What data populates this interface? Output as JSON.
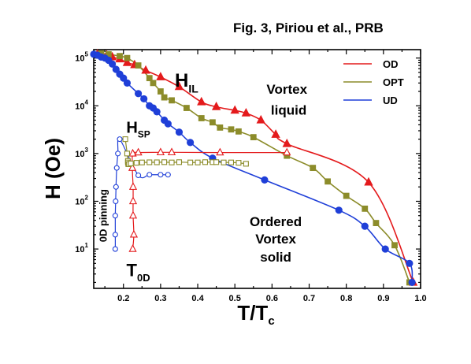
{
  "title": "Fig. 3, Piriou et al., PRB",
  "chart_data": {
    "type": "scatter",
    "title": "Fig. 3, Piriou et al., PRB",
    "xlabel_main": "T/T",
    "xlabel_sub": "c",
    "ylabel": "H (Oe)",
    "xlim": [
      0.12,
      1.0
    ],
    "ylim": [
      1.5,
      150000
    ],
    "yscale": "log",
    "x_ticks": [
      "0.2",
      "0.3",
      "0.4",
      "0.5",
      "0.6",
      "0.7",
      "0.8",
      "0.9",
      "1.0"
    ],
    "y_ticks": [
      {
        "base": "10",
        "exp": "1",
        "value": 10
      },
      {
        "base": "10",
        "exp": "2",
        "value": 100
      },
      {
        "base": "10",
        "exp": "3",
        "value": 1000
      },
      {
        "base": "10",
        "exp": "4",
        "value": 10000
      },
      {
        "base": "10",
        "exp": "5",
        "value": 100000
      }
    ],
    "legend_position": "top-right",
    "colors": {
      "OD": "#e41a1c",
      "OPT": "#8c8c2a",
      "UD": "#1f3fd8"
    },
    "series": [
      {
        "name": "OD",
        "marker": "triangle",
        "filled": true,
        "curve": "HIL",
        "x": [
          0.13,
          0.155,
          0.17,
          0.19,
          0.21,
          0.23,
          0.26,
          0.3,
          0.35,
          0.41,
          0.45,
          0.5,
          0.53,
          0.57,
          0.61,
          0.64,
          0.86,
          0.98
        ],
        "y": [
          120000,
          115000,
          105000,
          95000,
          80000,
          72000,
          55000,
          40000,
          25000,
          12000,
          9500,
          8000,
          7000,
          5000,
          2500,
          1600,
          250,
          2
        ]
      },
      {
        "name": "OPT",
        "marker": "square",
        "filled": true,
        "curve": "HIL",
        "x": [
          0.14,
          0.16,
          0.19,
          0.21,
          0.24,
          0.27,
          0.28,
          0.3,
          0.31,
          0.33,
          0.37,
          0.41,
          0.44,
          0.46,
          0.49,
          0.51,
          0.55,
          0.64,
          0.71,
          0.75,
          0.8,
          0.85,
          0.88,
          0.93,
          0.97
        ],
        "y": [
          125000,
          120000,
          110000,
          100000,
          70000,
          38000,
          30000,
          20000,
          15000,
          13000,
          9000,
          5500,
          4500,
          3500,
          3200,
          2900,
          2200,
          900,
          500,
          260,
          130,
          70,
          35,
          12,
          2
        ]
      },
      {
        "name": "UD",
        "marker": "circle",
        "filled": true,
        "curve": "HIL",
        "x": [
          0.12,
          0.13,
          0.14,
          0.15,
          0.16,
          0.17,
          0.18,
          0.19,
          0.2,
          0.21,
          0.24,
          0.255,
          0.27,
          0.28,
          0.29,
          0.31,
          0.32,
          0.35,
          0.38,
          0.44,
          0.58,
          0.78,
          0.85,
          0.905,
          0.97,
          0.977
        ],
        "y": [
          120000,
          115000,
          105000,
          100000,
          90000,
          75000,
          58000,
          46000,
          38000,
          30000,
          18000,
          14000,
          10000,
          9000,
          7500,
          5000,
          4200,
          2800,
          1700,
          800,
          280,
          65,
          30,
          10,
          5,
          2
        ]
      },
      {
        "name": "OD",
        "marker": "triangle",
        "filled": false,
        "curve": "HSP",
        "x": [
          0.225,
          0.228,
          0.226,
          0.226,
          0.226,
          0.224,
          0.225,
          0.24,
          0.3,
          0.33,
          0.46,
          0.64
        ],
        "y": [
          10,
          20,
          50,
          100,
          200,
          500,
          1000,
          1050,
          1060,
          1060,
          1050,
          1050
        ]
      },
      {
        "name": "OPT",
        "marker": "square",
        "filled": false,
        "curve": "HSP",
        "x": [
          0.205,
          0.21,
          0.212,
          0.212,
          0.213,
          0.215,
          0.22,
          0.235,
          0.25,
          0.27,
          0.29,
          0.31,
          0.33,
          0.35,
          0.38,
          0.4,
          0.42,
          0.44,
          0.45,
          0.47,
          0.49,
          0.51,
          0.53
        ],
        "y": [
          2000,
          1000,
          700,
          650,
          600,
          600,
          620,
          640,
          650,
          655,
          655,
          660,
          650,
          660,
          650,
          650,
          660,
          660,
          660,
          650,
          650,
          640,
          610
        ]
      },
      {
        "name": "UD",
        "marker": "circle",
        "filled": false,
        "curve": "HSP",
        "x": [
          0.178,
          0.178,
          0.178,
          0.179,
          0.18,
          0.182,
          0.185,
          0.19,
          0.24,
          0.27,
          0.3,
          0.32
        ],
        "y": [
          10,
          20,
          50,
          100,
          200,
          500,
          1000,
          2000,
          350,
          360,
          360,
          360
        ]
      }
    ],
    "annotations": [
      {
        "text": "H",
        "sub": "IL",
        "near": [
          0.37,
          25000
        ]
      },
      {
        "text": "H",
        "sub": "SP",
        "near": [
          0.24,
          2700
        ]
      },
      {
        "text": "Vortex",
        "near": [
          0.64,
          18000
        ]
      },
      {
        "text": "liquid",
        "near": [
          0.645,
          6500
        ]
      },
      {
        "text": "Ordered",
        "near": [
          0.61,
          30
        ]
      },
      {
        "text": "Vortex",
        "near": [
          0.61,
          13
        ]
      },
      {
        "text": "solid",
        "near": [
          0.61,
          5.5
        ]
      },
      {
        "text": "T",
        "sub": "0D",
        "near": [
          0.24,
          2.7
        ]
      },
      {
        "text": "0D pinning",
        "near": [
          0.155,
          50
        ],
        "rotated": true
      }
    ]
  }
}
